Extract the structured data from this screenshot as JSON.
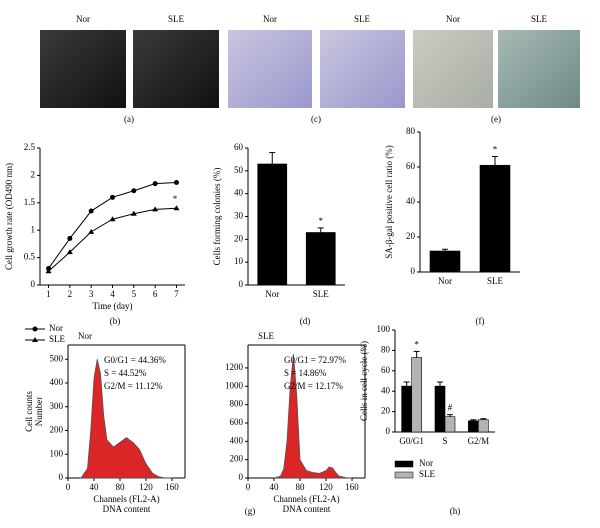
{
  "photo_panels": [
    {
      "label": "(a)",
      "images": [
        "Nor",
        "SLE"
      ]
    },
    {
      "label": "(c)",
      "images": [
        "Nor",
        "SLE"
      ]
    },
    {
      "label": "(e)",
      "images": [
        "Nor",
        "SLE"
      ]
    }
  ],
  "chart_data": [
    {
      "type": "line",
      "panel": "(b)",
      "xlabel": [
        "Time (day)"
      ],
      "ylabel": [
        "Cell growth rate (OD490 nm)"
      ],
      "x": [
        1,
        2,
        3,
        4,
        5,
        6,
        7
      ],
      "xlim": [
        0.6,
        7.4
      ],
      "xticks": [
        1,
        2,
        3,
        4,
        5,
        6,
        7
      ],
      "ylim": [
        0,
        2.5
      ],
      "yticks": [
        0,
        0.5,
        1,
        1.5,
        2,
        2.5
      ],
      "series": [
        {
          "name": "Nor",
          "color": "#000000",
          "marker": "circle",
          "values": [
            0.3,
            0.85,
            1.35,
            1.6,
            1.72,
            1.85,
            1.87
          ]
        },
        {
          "name": "SLE",
          "color": "#000000",
          "marker": "triangle",
          "values": [
            0.25,
            0.6,
            0.97,
            1.2,
            1.3,
            1.38,
            1.4
          ]
        }
      ],
      "annotations": [
        "*"
      ]
    },
    {
      "type": "bar",
      "panel": "(d)",
      "ylabel": [
        "Cells forming colonies (%)"
      ],
      "categories": [
        "Nor",
        "SLE"
      ],
      "series": [
        {
          "color": "#000000",
          "values": [
            53,
            23
          ],
          "errors": [
            5,
            2
          ]
        }
      ],
      "ylim": [
        0,
        60
      ],
      "yticks": [
        0,
        10,
        20,
        30,
        40,
        50,
        60
      ],
      "annotations": [
        "*"
      ]
    },
    {
      "type": "bar",
      "panel": "(f)",
      "ylabel": [
        "SA-β-gal positive cell ratio (%)"
      ],
      "categories": [
        "Nor",
        "SLE"
      ],
      "series": [
        {
          "color": "#000000",
          "values": [
            12,
            61
          ],
          "errors": [
            1,
            5
          ]
        }
      ],
      "ylim": [
        0,
        80
      ],
      "yticks": [
        0,
        20,
        40,
        60,
        80
      ],
      "annotations": [
        "*"
      ]
    },
    {
      "type": "area",
      "panel": "(g)",
      "title": "Nor",
      "xlabel": [
        "Channels (FL2-A)",
        "DNA content"
      ],
      "ylabel": [
        "Cell counts",
        "Number"
      ],
      "stats": [
        "G0/G1 = 44.36%",
        "S = 44.52%",
        "G2/M = 11.12%"
      ],
      "x": [
        20,
        30,
        35,
        40,
        45,
        50,
        55,
        60,
        70,
        80,
        90,
        100,
        110,
        120,
        130,
        140,
        150,
        160
      ],
      "xlim": [
        0,
        180
      ],
      "xticks": [
        0,
        40,
        80,
        120,
        160
      ],
      "ylim": [
        0,
        560
      ],
      "yticks": [
        0,
        100,
        200,
        300,
        400,
        500
      ],
      "series": [
        {
          "color": "#d40000",
          "values": [
            0,
            40,
            200,
            420,
            500,
            440,
            260,
            160,
            130,
            150,
            170,
            150,
            120,
            60,
            20,
            5,
            0,
            0
          ]
        }
      ]
    },
    {
      "type": "area",
      "title": "SLE",
      "xlabel": [
        "Channels (FL2-A)",
        "DNA content"
      ],
      "stats": [
        "G0/G1 = 72.97%",
        "S = 14.86%",
        "G2/M = 12.17%"
      ],
      "x": [
        40,
        50,
        55,
        60,
        65,
        70,
        75,
        80,
        90,
        100,
        110,
        120,
        125,
        130,
        135,
        140,
        150,
        160
      ],
      "xlim": [
        0,
        180
      ],
      "xticks": [
        0,
        40,
        80,
        120,
        160
      ],
      "ylim": [
        0,
        1450
      ],
      "yticks": [
        0,
        200,
        400,
        600,
        800,
        1000,
        1200
      ],
      "series": [
        {
          "color": "#d40000",
          "values": [
            0,
            20,
            100,
            400,
            1000,
            1350,
            900,
            200,
            80,
            60,
            50,
            80,
            120,
            110,
            60,
            20,
            5,
            0
          ]
        }
      ]
    },
    {
      "type": "bar",
      "panel": "(h)",
      "ylabel": [
        "Cells in cell cycle (%)"
      ],
      "categories": [
        "G0/G1",
        "S",
        "G2/M"
      ],
      "ylim": [
        0,
        100
      ],
      "yticks": [
        0,
        20,
        40,
        60,
        80,
        100
      ],
      "series": [
        {
          "name": "Nor",
          "color": "#000000",
          "values": [
            45,
            45,
            11
          ],
          "errors": [
            4,
            4,
            1
          ]
        },
        {
          "name": "SLE",
          "color": "#b3b3b3",
          "values": [
            73,
            15,
            12
          ],
          "errors": [
            6,
            2,
            1
          ]
        }
      ],
      "annotations": [
        "*",
        "#"
      ]
    }
  ]
}
